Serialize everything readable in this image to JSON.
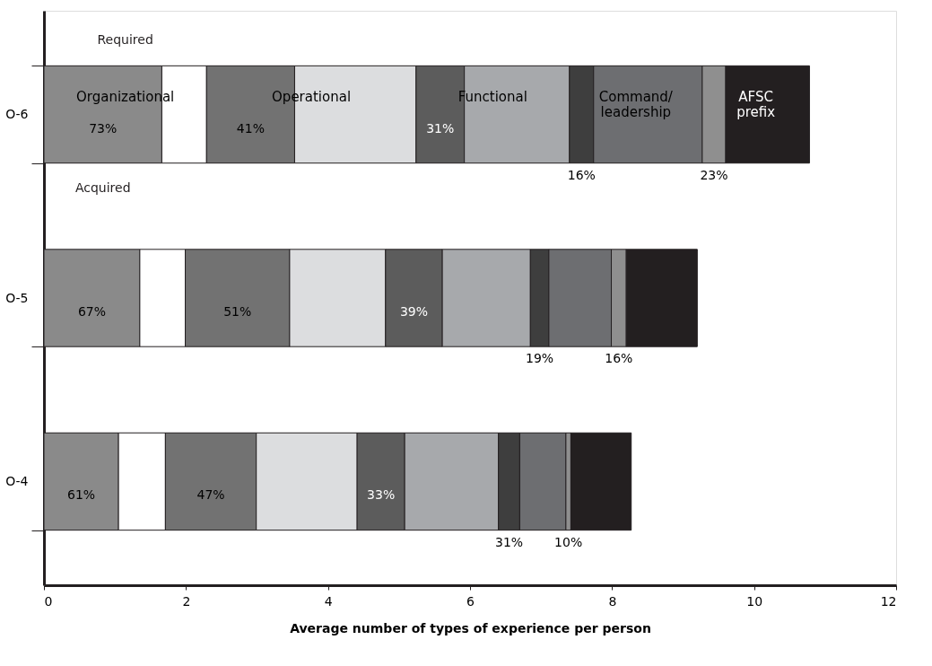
{
  "chart_data": {
    "type": "bar",
    "orientation": "horizontal",
    "stacked": true,
    "categories": [
      "O-6",
      "O-5",
      "O-4"
    ],
    "xlabel": "Average number of types of experience per person",
    "xlim": [
      0,
      12
    ],
    "xticks": [
      0,
      2,
      4,
      6,
      8,
      10,
      12
    ],
    "grid": false,
    "legend": false,
    "annotations": [
      "Required",
      "Acquired",
      "73%",
      "41%",
      "31%",
      "16%",
      "23%",
      "67%",
      "51%",
      "39%",
      "19%",
      "16%",
      "61%",
      "47%",
      "33%",
      "31%",
      "10%"
    ],
    "series": [
      {
        "color": "#8a8a8a",
        "values": [
          1.66,
          1.35,
          1.05
        ]
      },
      {
        "name": "Organizational",
        "color": "#ffffff",
        "values": [
          0.63,
          0.64,
          0.66
        ]
      },
      {
        "color": "#727272",
        "values": [
          1.24,
          1.47,
          1.28
        ]
      },
      {
        "name": "Operational",
        "color": "#dcdddf",
        "values": [
          1.71,
          1.35,
          1.42
        ]
      },
      {
        "color": "#5c5c5c",
        "values": [
          0.68,
          0.8,
          0.67
        ]
      },
      {
        "name": "Functional",
        "color": "#a7a9ac",
        "values": [
          1.48,
          1.24,
          1.32
        ]
      },
      {
        "color": "#3e3e3e",
        "values": [
          0.34,
          0.26,
          0.3
        ]
      },
      {
        "name": "Command/\nleadership",
        "color": "#6d6e71",
        "values": [
          1.53,
          0.88,
          0.65
        ]
      },
      {
        "color": "#8f8f8f",
        "values": [
          0.33,
          0.21,
          0.07
        ]
      },
      {
        "name": "AFSC\nprefix",
        "color": "#231f20",
        "values": [
          1.18,
          1.0,
          0.85
        ]
      }
    ]
  }
}
